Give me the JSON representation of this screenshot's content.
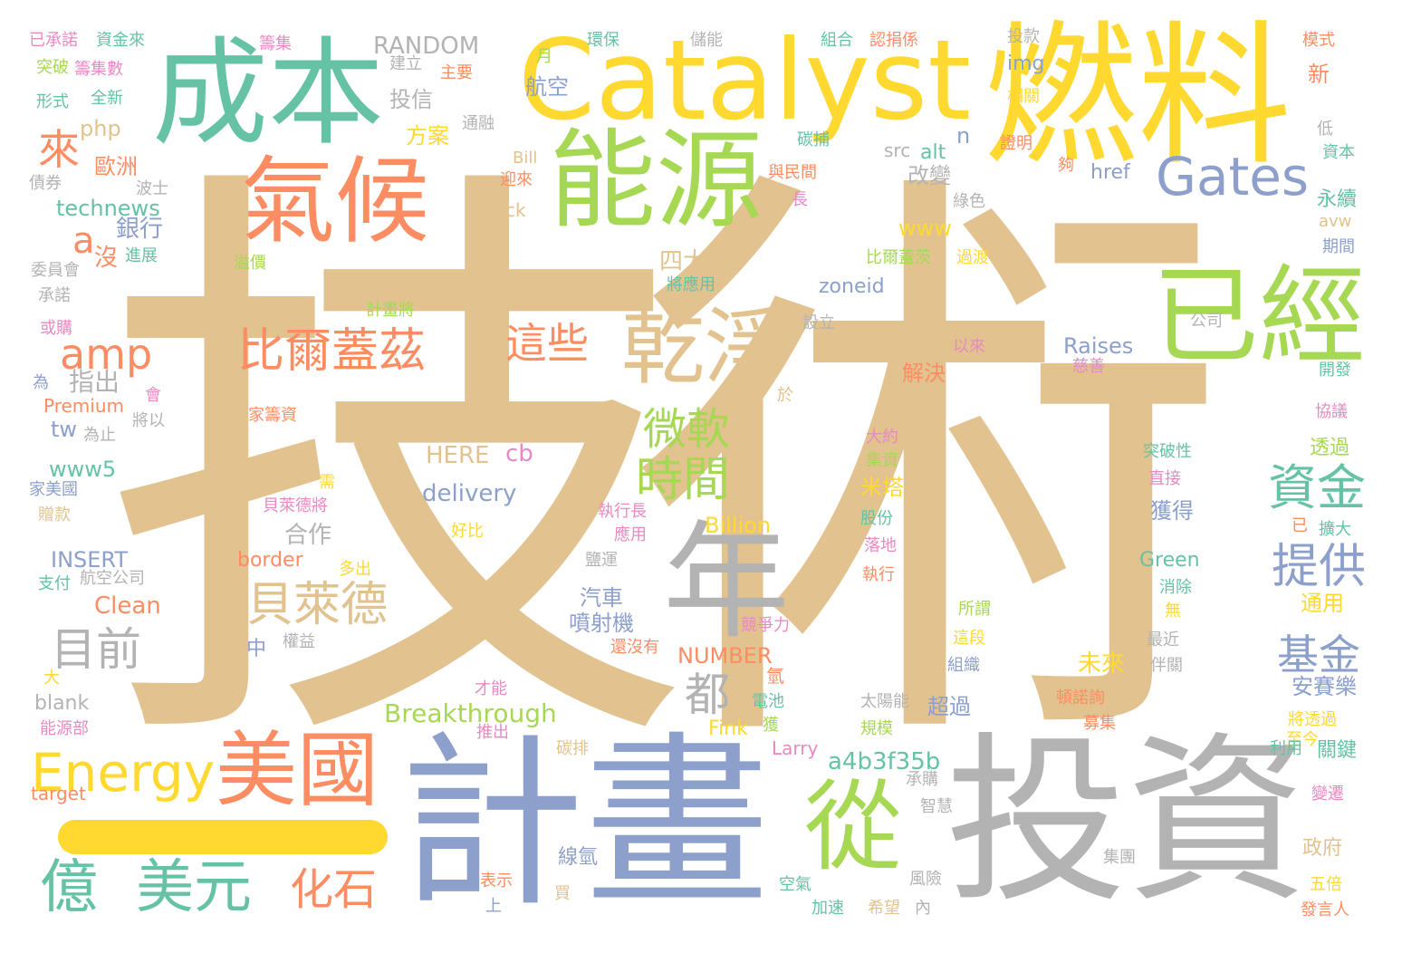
{
  "palette": {
    "tan": "#e2c28f",
    "blue": "#8da0cb",
    "gray": "#b3b3b3",
    "green": "#66c2a5",
    "orange": "#fc8d62",
    "lime": "#a6d854",
    "yellow": "#ffd92f",
    "pink": "#e78ac3"
  },
  "words": [
    "技術",
    "計畫",
    "投資",
    "燃料",
    "Catalyst",
    "成本",
    "能源",
    "年",
    "已經",
    "氣候",
    "美國",
    "從",
    "乾淨",
    "Gates",
    "比爾蓋茲",
    "Energy",
    "貝萊德",
    "億",
    "美元",
    "amp",
    "時間",
    "微軟",
    "資金",
    "提供",
    "目前",
    "這些",
    "化石",
    "來",
    "基金",
    "都",
    "a",
    "RANDOM",
    "delivery",
    "HERE",
    "cb",
    "Breakthrough",
    "Billion",
    "NUMBER",
    "INSERT",
    "Clean",
    "Raises",
    "Green",
    "Premium",
    "technews",
    "www5",
    "www",
    "zoneid",
    "a4b3f35b",
    "blank",
    "target",
    "php",
    "img",
    "src",
    "alt",
    "href",
    "n",
    "ck",
    "Bill",
    "Fink",
    "Larry",
    "border",
    "avw",
    "tw",
    "歐洲",
    "銀行",
    "沒",
    "進展",
    "溢價",
    "委員會",
    "承諾",
    "指出",
    "為",
    "或購",
    "家美國",
    "贈款",
    "支付",
    "航空公司",
    "能源部",
    "大",
    "中",
    "權益",
    "好比",
    "多出",
    "才能",
    "推出",
    "表示",
    "上",
    "投信",
    "方案",
    "改變",
    "四大",
    "將應用",
    "計畫將",
    "解決",
    "合作",
    "汽車",
    "噴射機",
    "比爾蓋茨",
    "設立",
    "過渡",
    "米塔",
    "大約",
    "集資",
    "股份",
    "落地",
    "執行",
    "電池",
    "競爭力",
    "還沒有",
    "氫",
    "獲",
    "鹽運",
    "應用",
    "執行長",
    "太陽能",
    "規模",
    "超過",
    "未來",
    "安賽樂",
    "關鍵",
    "碳排",
    "線氫",
    "買",
    "空氣",
    "加速",
    "希望",
    "內",
    "風險",
    "智慧",
    "承購",
    "政府",
    "五倍",
    "發言人",
    "變遷",
    "至今",
    "利用",
    "將透過",
    "募集",
    "碳捕",
    "與民間",
    "長",
    "綠色",
    "證明",
    "夠",
    "慈善",
    "開發",
    "協議",
    "突破性",
    "直接",
    "擴大",
    "消除",
    "無",
    "伴關",
    "最近",
    "組織",
    "這段",
    "所謂",
    "頓諾詢",
    "已",
    "透過",
    "獲得",
    "通用",
    "永續",
    "期間",
    "資本",
    "低",
    "新",
    "模式",
    "相關",
    "公司",
    "以來",
    "組合",
    "認捐係",
    "投款",
    "儲能",
    "環保",
    "航空",
    "月",
    "建立",
    "主要",
    "通融",
    "迎來",
    "已承諾",
    "資金來",
    "籌集",
    "突破",
    "籌集數",
    "形式",
    "全新",
    "債券",
    "波士",
    "家籌資",
    "將以",
    "為止",
    "會",
    "於",
    "集團",
    "貝萊德將",
    "需"
  ]
}
